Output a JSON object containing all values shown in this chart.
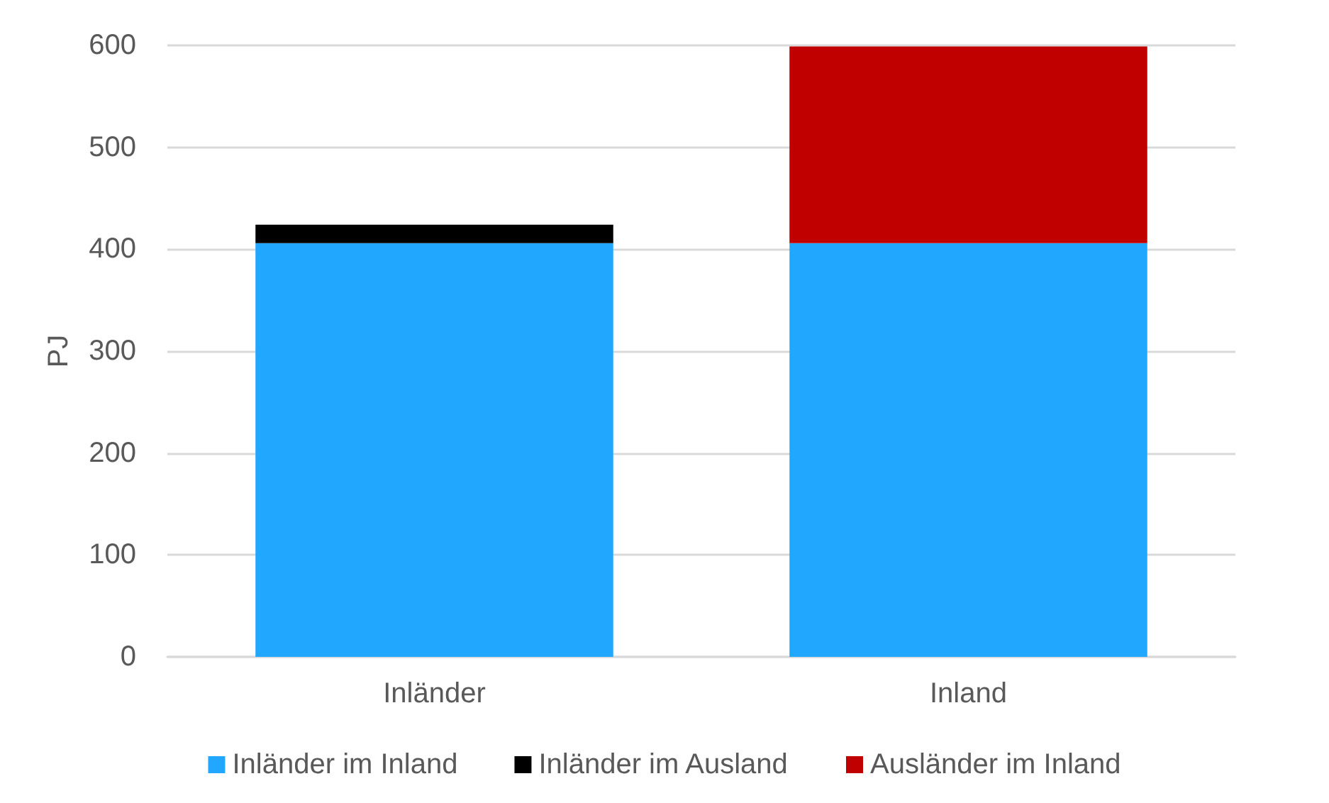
{
  "chart_data": {
    "type": "bar",
    "stacked": true,
    "ylabel": "PJ",
    "categories": [
      "Inländer",
      "Inland"
    ],
    "series": [
      {
        "name": "Inländer im Inland",
        "color": "#22a7ff",
        "values": [
          406,
          406
        ]
      },
      {
        "name": "Inländer im Ausland",
        "color": "#000000",
        "values": [
          18,
          null
        ]
      },
      {
        "name": "Ausländer im Inland",
        "color": "#c00000",
        "values": [
          null,
          193
        ]
      }
    ],
    "ylim": [
      0,
      600
    ],
    "yticks": [
      0,
      100,
      200,
      300,
      400,
      500,
      600
    ],
    "grid": "y",
    "legend": "bottom"
  }
}
